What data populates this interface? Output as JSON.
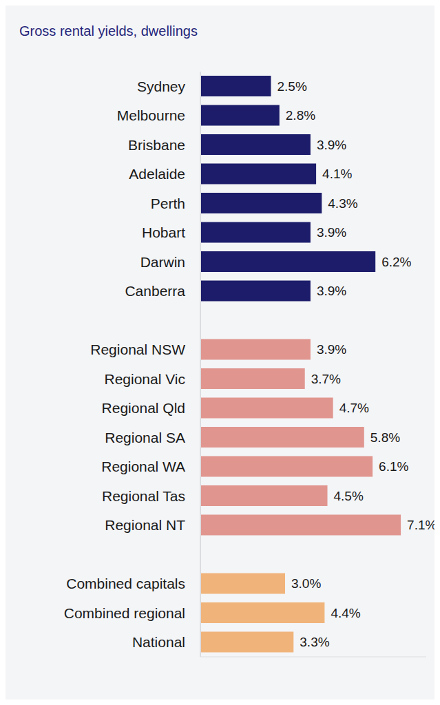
{
  "chart_data": {
    "type": "bar",
    "title": "Gross rental yields, dwellings",
    "orientation": "horizontal",
    "categories": [
      "Sydney",
      "Melbourne",
      "Brisbane",
      "Adelaide",
      "Perth",
      "Hobart",
      "Darwin",
      "Canberra",
      null,
      "Regional NSW",
      "Regional Vic",
      "Regional Qld",
      "Regional SA",
      "Regional WA",
      "Regional Tas",
      "Regional NT",
      null,
      "Combined capitals",
      "Combined regional",
      "National"
    ],
    "values": [
      2.5,
      2.8,
      3.9,
      4.1,
      4.3,
      3.9,
      6.2,
      3.9,
      null,
      3.9,
      3.7,
      4.7,
      5.8,
      6.1,
      4.5,
      7.1,
      null,
      3.0,
      4.4,
      3.3
    ],
    "value_labels": [
      "2.5%",
      "2.8%",
      "3.9%",
      "4.1%",
      "4.3%",
      "3.9%",
      "6.2%",
      "3.9%",
      null,
      "3.9%",
      "3.7%",
      "4.7%",
      "5.8%",
      "6.1%",
      "4.5%",
      "7.1%",
      null,
      "3.0%",
      "4.4%",
      "3.3%"
    ],
    "colors": [
      "#1c1c6b",
      "#1c1c6b",
      "#1c1c6b",
      "#1c1c6b",
      "#1c1c6b",
      "#1c1c6b",
      "#1c1c6b",
      "#1c1c6b",
      null,
      "#e0968f",
      "#e0968f",
      "#e0968f",
      "#e0968f",
      "#e0968f",
      "#e0968f",
      "#e0968f",
      null,
      "#f0b47a",
      "#f0b47a",
      "#f0b47a"
    ],
    "xlim": [
      0,
      8
    ],
    "data_labels": true,
    "tick_labels": "y",
    "grid": false
  }
}
